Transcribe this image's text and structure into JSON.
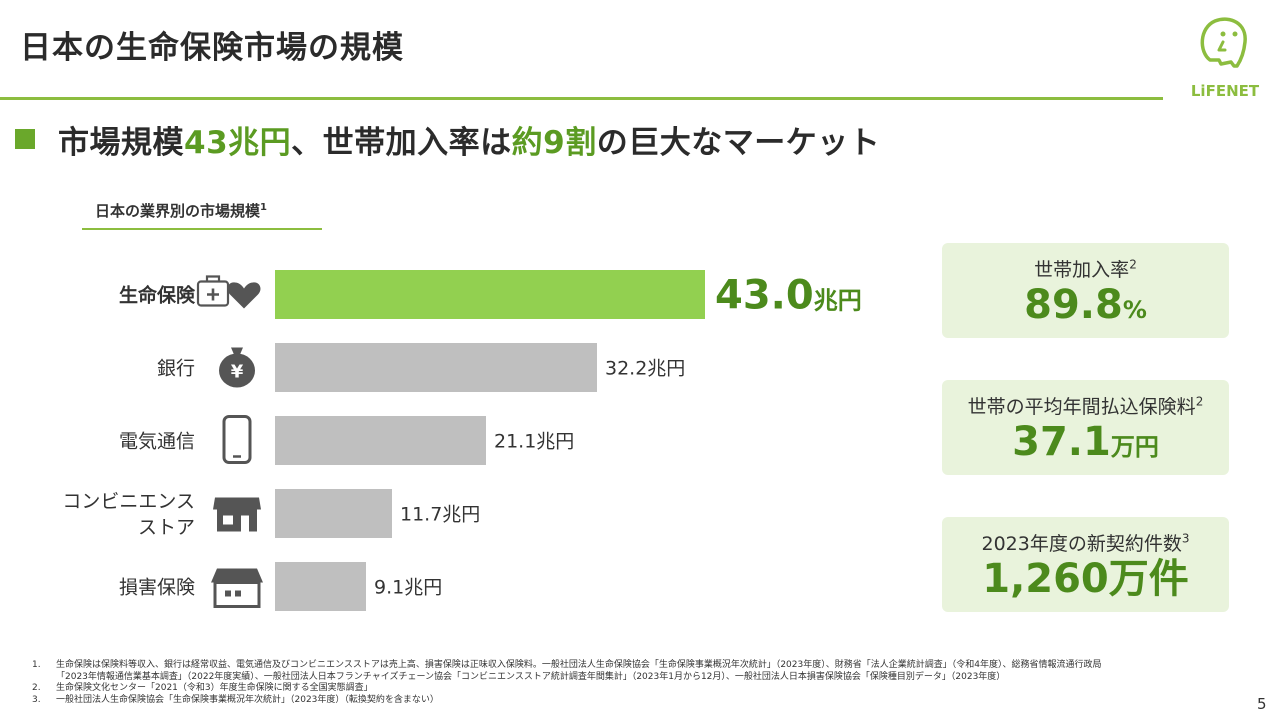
{
  "page": {
    "title": "日本の生命保険市場の規模",
    "page_number": "5",
    "logo_text": "LiFENET"
  },
  "headline": {
    "parts": [
      "市場規模",
      "43兆円",
      "、世帯加入率は",
      "約9割",
      "の巨大なマーケット"
    ]
  },
  "chart_data": {
    "type": "bar",
    "orientation": "horizontal",
    "title": "日本の業界別の市場規模",
    "title_note": "1",
    "categories": [
      [
        "生命保険"
      ],
      [
        "銀行"
      ],
      [
        "電気通信"
      ],
      [
        "コンビニエンス",
        "ストア"
      ],
      [
        "損害保険"
      ]
    ],
    "values": [
      43.0,
      32.2,
      21.1,
      11.7,
      9.1
    ],
    "value_labels": [
      "43.0",
      "32.2兆円",
      "21.1兆円",
      "11.7兆円",
      "9.1兆円"
    ],
    "highlight_unit": "兆円",
    "highlight_index": 0,
    "icons": [
      "first-aid-heart-icon",
      "money-bag-yen-icon",
      "smartphone-icon",
      "convenience-store-icon",
      "house-icon"
    ],
    "colors": {
      "highlight": "#92d050",
      "default": "#bfbfbf"
    },
    "xlim": [
      0,
      43.0
    ]
  },
  "stats": [
    {
      "label": "世帯加入率",
      "note": "2",
      "value": "89.8",
      "unit": "%"
    },
    {
      "label": "世帯の平均年間払込保険料",
      "note": "2",
      "value": "37.1",
      "unit": "万円"
    },
    {
      "label": "2023年度の新契約件数",
      "note": "3",
      "value": "1,260万件",
      "unit": ""
    }
  ],
  "footnotes": [
    {
      "num": "1.",
      "lines": [
        "生命保険は保険料等収入、銀行は経常収益、電気通信及びコンビニエンスストアは売上高、損害保険は正味収入保険料。一般社団法人生命保険協会「生命保険事業概況年次統計」（2023年度）、財務省「法人企業統計調査」（令和4年度）、総務省情報流通行政局",
        "「2023年情報通信業基本調査」（2022年度実績）、一般社団法人日本フランチャイズチェーン協会「コンビニエンスストア統計調査年間集計」（2023年1月から12月）、一般社団法人日本損害保険協会「保険種目別データ」（2023年度）"
      ]
    },
    {
      "num": "2.",
      "lines": [
        "生命保険文化センター「2021（令和3）年度生命保険に関する全国実態調査」"
      ]
    },
    {
      "num": "3.",
      "lines": [
        "一般社団法人生命保険協会「生命保険事業概況年次統計」（2023年度）（転換契約を含まない）"
      ]
    }
  ]
}
